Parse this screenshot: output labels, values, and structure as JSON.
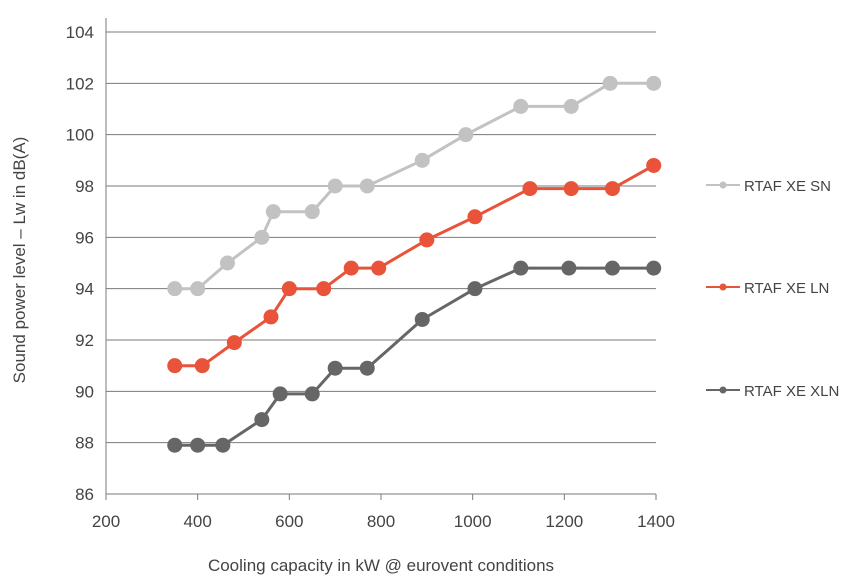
{
  "chart_data": {
    "type": "line",
    "xlabel": "Cooling capacity in kW @ eurovent conditions",
    "ylabel": "Sound power level – Lw in dB(A)",
    "xlim": [
      200,
      1400
    ],
    "ylim": [
      86,
      104
    ],
    "xticks": [
      200,
      400,
      600,
      800,
      1000,
      1200,
      1400
    ],
    "yticks": [
      86,
      88,
      90,
      92,
      94,
      96,
      98,
      100,
      102,
      104
    ],
    "grid": "horizontal",
    "legend_position": "right",
    "series": [
      {
        "name": "RTAF XE SN",
        "color": "#c2c2c2",
        "points": [
          [
            350,
            94
          ],
          [
            400,
            94
          ],
          [
            465,
            95
          ],
          [
            540,
            96
          ],
          [
            565,
            97
          ],
          [
            650,
            97
          ],
          [
            700,
            98
          ],
          [
            770,
            98
          ],
          [
            890,
            99
          ],
          [
            985,
            100
          ],
          [
            1105,
            101.1
          ],
          [
            1215,
            101.1
          ],
          [
            1300,
            102
          ],
          [
            1395,
            102
          ]
        ]
      },
      {
        "name": "RTAF XE LN",
        "color": "#e8533a",
        "points": [
          [
            350,
            91
          ],
          [
            410,
            91
          ],
          [
            480,
            91.9
          ],
          [
            560,
            92.9
          ],
          [
            600,
            94
          ],
          [
            675,
            94
          ],
          [
            735,
            94.8
          ],
          [
            795,
            94.8
          ],
          [
            900,
            95.9
          ],
          [
            1005,
            96.8
          ],
          [
            1125,
            97.9
          ],
          [
            1215,
            97.9
          ],
          [
            1305,
            97.9
          ],
          [
            1395,
            98.8
          ]
        ]
      },
      {
        "name": "RTAF XE XLN",
        "color": "#666666",
        "points": [
          [
            350,
            87.9
          ],
          [
            400,
            87.9
          ],
          [
            455,
            87.9
          ],
          [
            540,
            88.9
          ],
          [
            580,
            89.9
          ],
          [
            650,
            89.9
          ],
          [
            700,
            90.9
          ],
          [
            770,
            90.9
          ],
          [
            890,
            92.8
          ],
          [
            1005,
            94
          ],
          [
            1105,
            94.8
          ],
          [
            1210,
            94.8
          ],
          [
            1305,
            94.8
          ],
          [
            1395,
            94.8
          ]
        ]
      }
    ]
  }
}
